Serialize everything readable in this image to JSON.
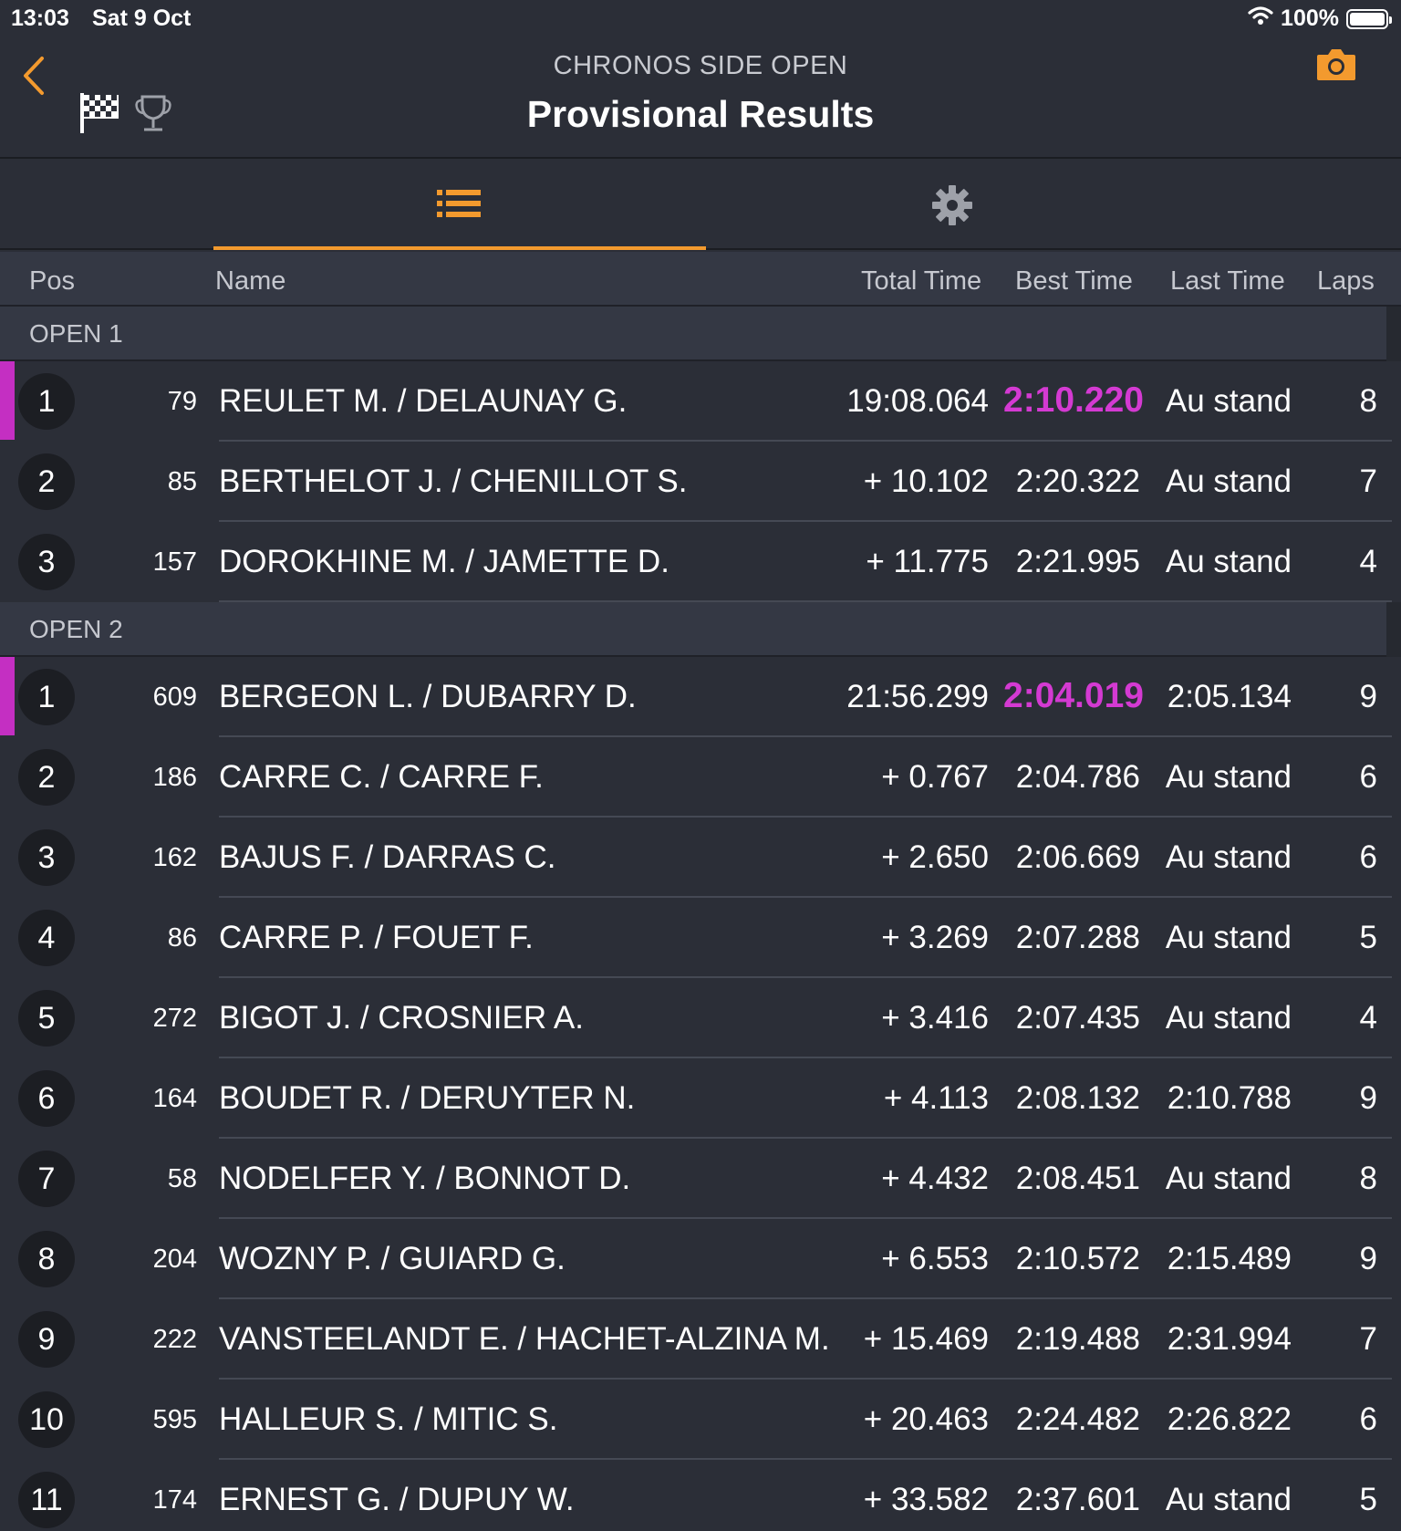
{
  "status": {
    "time": "13:03",
    "date": "Sat 9 Oct",
    "battery": "100%"
  },
  "header": {
    "event": "CHRONOS SIDE OPEN",
    "title": "Provisional Results"
  },
  "icons": {
    "back": "chevron-left-icon",
    "flag": "checkered-flag-icon",
    "trophy": "trophy-icon",
    "camera": "camera-icon",
    "list": "list-icon",
    "settings": "gear-icon"
  },
  "colors": {
    "accent": "#f39a2e",
    "best_lap": "#d43ad2",
    "background": "#2b2e37"
  },
  "columns": {
    "pos": "Pos",
    "name": "Name",
    "total": "Total Time",
    "best": "Best Time",
    "last": "Last Time",
    "laps": "Laps"
  },
  "groups": [
    {
      "label": "OPEN 1",
      "rows": [
        {
          "pos": "1",
          "num": "79",
          "name": "REULET M. / DELAUNAY G.",
          "total": "19:08.064",
          "best": "2:10.220",
          "last": "Au stand",
          "laps": "8",
          "leader": true
        },
        {
          "pos": "2",
          "num": "85",
          "name": "BERTHELOT J. / CHENILLOT S.",
          "total": "+ 10.102",
          "best": "2:20.322",
          "last": "Au stand",
          "laps": "7"
        },
        {
          "pos": "3",
          "num": "157",
          "name": "DOROKHINE M. / JAMETTE D.",
          "total": "+ 11.775",
          "best": "2:21.995",
          "last": "Au stand",
          "laps": "4"
        }
      ]
    },
    {
      "label": "OPEN 2",
      "rows": [
        {
          "pos": "1",
          "num": "609",
          "name": "BERGEON L. / DUBARRY D.",
          "total": "21:56.299",
          "best": "2:04.019",
          "last": "2:05.134",
          "laps": "9",
          "leader": true
        },
        {
          "pos": "2",
          "num": "186",
          "name": "CARRE C. / CARRE F.",
          "total": "+ 0.767",
          "best": "2:04.786",
          "last": "Au stand",
          "laps": "6"
        },
        {
          "pos": "3",
          "num": "162",
          "name": "BAJUS F. / DARRAS C.",
          "total": "+ 2.650",
          "best": "2:06.669",
          "last": "Au stand",
          "laps": "6"
        },
        {
          "pos": "4",
          "num": "86",
          "name": "CARRE P. / FOUET F.",
          "total": "+ 3.269",
          "best": "2:07.288",
          "last": "Au stand",
          "laps": "5"
        },
        {
          "pos": "5",
          "num": "272",
          "name": "BIGOT J. / CROSNIER A.",
          "total": "+ 3.416",
          "best": "2:07.435",
          "last": "Au stand",
          "laps": "4"
        },
        {
          "pos": "6",
          "num": "164",
          "name": "BOUDET R. / DERUYTER N.",
          "total": "+ 4.113",
          "best": "2:08.132",
          "last": "2:10.788",
          "laps": "9"
        },
        {
          "pos": "7",
          "num": "58",
          "name": "NODELFER Y. / BONNOT D.",
          "total": "+ 4.432",
          "best": "2:08.451",
          "last": "Au stand",
          "laps": "8"
        },
        {
          "pos": "8",
          "num": "204",
          "name": "WOZNY P. / GUIARD G.",
          "total": "+ 6.553",
          "best": "2:10.572",
          "last": "2:15.489",
          "laps": "9"
        },
        {
          "pos": "9",
          "num": "222",
          "name": "VANSTEELANDT E. / HACHET-ALZINA M.",
          "total": "+ 15.469",
          "best": "2:19.488",
          "last": "2:31.994",
          "laps": "7"
        },
        {
          "pos": "10",
          "num": "595",
          "name": "HALLEUR S. / MITIC S.",
          "total": "+ 20.463",
          "best": "2:24.482",
          "last": "2:26.822",
          "laps": "6"
        },
        {
          "pos": "11",
          "num": "174",
          "name": "ERNEST G. / DUPUY W.",
          "total": "+ 33.582",
          "best": "2:37.601",
          "last": "Au stand",
          "laps": "5"
        }
      ]
    }
  ]
}
